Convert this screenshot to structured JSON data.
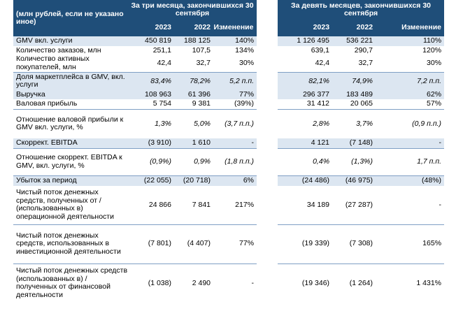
{
  "header": {
    "unit_label": "(млн рублей, если не указано иное)",
    "three_months": "За три месяца, закончившихся 30 сентября",
    "nine_months": "За девять месяцев, закончившихся 30 сентября",
    "year_2023": "2023",
    "year_2022": "2022",
    "change_3m": "Изменение",
    "change_9m": "Изменение"
  },
  "rows": [
    {
      "label": "GMV вкл. услуги",
      "q23": "450 819",
      "q22": "188 125",
      "qch": "140%",
      "n23": "1 126 495",
      "n22": "536 221",
      "nch": "110%"
    },
    {
      "label": "Количество заказов, млн",
      "q23": "251,1",
      "q22": "107,5",
      "qch": "134%",
      "n23": "639,1",
      "n22": "290,7",
      "nch": "120%"
    },
    {
      "label": "Количество активных покупателей, млн",
      "q23": "42,4",
      "q22": "32,7",
      "qch": "30%",
      "n23": "42,4",
      "n22": "32,7",
      "nch": "30%"
    },
    {
      "label": "Доля маркетплейса в GMV, вкл. услуги",
      "q23": "83,4%",
      "q22": "78,2%",
      "qch": "5,2 п.п.",
      "n23": "82,1%",
      "n22": "74,9%",
      "nch": "7,2 п.п."
    },
    {
      "label": "Выручка",
      "q23": "108 963",
      "q22": "61 396",
      "qch": "77%",
      "n23": "296 377",
      "n22": "183 489",
      "nch": "62%"
    },
    {
      "label": "Валовая прибыль",
      "q23": "5 754",
      "q22": "9 381",
      "qch": "(39%)",
      "n23": "31 412",
      "n22": "20 065",
      "nch": "57%"
    },
    {
      "label": "Отношение валовой прибыли к GMV вкл. услуги, %",
      "q23": "1,3%",
      "q22": "5,0%",
      "qch": "(3,7 п.п.)",
      "n23": "2,8%",
      "n22": "3,7%",
      "nch": "(0,9 п.п.)"
    },
    {
      "label": "Скоррект. EBITDA",
      "q23": "(3 910)",
      "q22": "1 610",
      "qch": "-",
      "n23": "4 121",
      "n22": "(7 148)",
      "nch": "-"
    },
    {
      "label": "Отношение скоррект. EBITDA к GMV, вкл. услуги, %",
      "q23": "(0,9%)",
      "q22": "0,9%",
      "qch": "(1,8 п.п.)",
      "n23": "0,4%",
      "n22": "(1,3%)",
      "nch": "1,7 п.п."
    },
    {
      "label": "Убыток за период",
      "q23": "(22 055)",
      "q22": "(20 718)",
      "qch": "6%",
      "n23": "(24 486)",
      "n22": "(46 975)",
      "nch": "(48%)"
    },
    {
      "label": "Чистый поток денежных средств, полученных от / (использованных в) операционной деятельности",
      "q23": "24 866",
      "q22": "7 841",
      "qch": "217%",
      "n23": "34 189",
      "n22": "(27 287)",
      "nch": "-"
    },
    {
      "label": "Чистый поток денежных средств, использованных в инвестиционной деятельности",
      "q23": "(7 801)",
      "q22": "(4 407)",
      "qch": "77%",
      "n23": "(19 339)",
      "n22": "(7 308)",
      "nch": "165%"
    },
    {
      "label": "Чистый поток денежных средств (использованных в) / полученных от финансовой деятельности",
      "q23": "(1 038)",
      "q22": "2 490",
      "qch": "-",
      "n23": "(19 346)",
      "n22": "(1 264)",
      "nch": "1 431%"
    }
  ]
}
